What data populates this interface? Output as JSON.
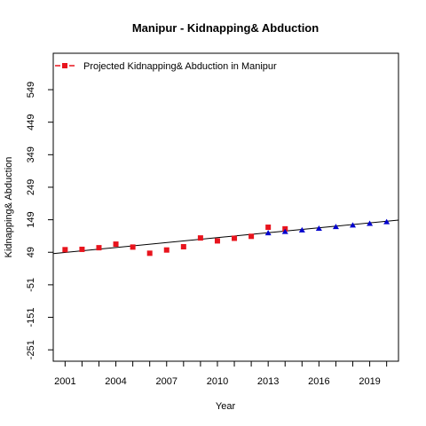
{
  "chart_data": {
    "type": "scatter",
    "title": "Manipur  -  Kidnapping& Abduction",
    "xlabel": "Year",
    "ylabel": "Kidnapping& Abduction",
    "xlim": [
      2000.3,
      2020.7
    ],
    "ylim": [
      -286,
      661
    ],
    "x_ticks": [
      2001,
      2004,
      2007,
      2010,
      2013,
      2016,
      2019
    ],
    "y_ticks": [
      -251,
      -151,
      -51,
      49,
      149,
      249,
      349,
      449,
      549
    ],
    "legend": {
      "position": "top-left",
      "entries": [
        {
          "label": "Projected  Kidnapping& Abduction  in  Manipur",
          "color": "#e8141d",
          "marker": "square"
        }
      ]
    },
    "series": [
      {
        "name": "Projected  Kidnapping& Abduction  in  Manipur",
        "color": "#e8141d",
        "marker": "square",
        "points": [
          {
            "x": 2001,
            "y": 57
          },
          {
            "x": 2002,
            "y": 58
          },
          {
            "x": 2003,
            "y": 63
          },
          {
            "x": 2004,
            "y": 74
          },
          {
            "x": 2005,
            "y": 65
          },
          {
            "x": 2006,
            "y": 46
          },
          {
            "x": 2007,
            "y": 56
          },
          {
            "x": 2008,
            "y": 66
          },
          {
            "x": 2009,
            "y": 93
          },
          {
            "x": 2010,
            "y": 84
          },
          {
            "x": 2011,
            "y": 92
          },
          {
            "x": 2012,
            "y": 98
          },
          {
            "x": 2013,
            "y": 126
          },
          {
            "x": 2014,
            "y": 121
          }
        ]
      },
      {
        "color": "#0000cd",
        "marker": "triangle",
        "points": [
          {
            "x": 2013,
            "y": 108
          },
          {
            "x": 2014,
            "y": 112
          },
          {
            "x": 2015,
            "y": 117
          },
          {
            "x": 2016,
            "y": 122
          },
          {
            "x": 2017,
            "y": 127
          },
          {
            "x": 2018,
            "y": 132
          },
          {
            "x": 2019,
            "y": 137
          },
          {
            "x": 2020,
            "y": 142
          }
        ]
      }
    ],
    "trend_line": {
      "color": "#000000",
      "x": [
        2000.3,
        2020.7
      ],
      "y": [
        45,
        148
      ]
    }
  }
}
